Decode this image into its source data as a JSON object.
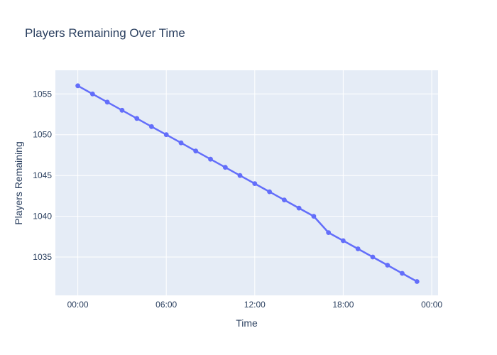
{
  "chart_data": {
    "type": "line",
    "mode": "lines+markers",
    "title": "Players Remaining Over Time",
    "xlabel": "Time",
    "ylabel": "Players Remaining",
    "x": [
      "00:00",
      "01:00",
      "02:00",
      "03:00",
      "04:00",
      "05:00",
      "06:00",
      "07:00",
      "08:00",
      "09:00",
      "10:00",
      "11:00",
      "12:00",
      "13:00",
      "14:00",
      "15:00",
      "16:00",
      "17:00",
      "18:00",
      "19:00",
      "20:00",
      "21:00",
      "22:00",
      "23:00"
    ],
    "x_hours": [
      0,
      1,
      2,
      3,
      4,
      5,
      6,
      7,
      8,
      9,
      10,
      11,
      12,
      13,
      14,
      15,
      16,
      17,
      18,
      19,
      20,
      21,
      22,
      23
    ],
    "series": [
      {
        "name": "Players Remaining",
        "values": [
          1056,
          1055,
          1054,
          1053,
          1052,
          1051,
          1050,
          1049,
          1048,
          1047,
          1046,
          1045,
          1044,
          1043,
          1042,
          1041,
          1040,
          1038,
          1037,
          1036,
          1035,
          1034,
          1033,
          1032
        ]
      }
    ],
    "x_ticks": {
      "hours": [
        0,
        6,
        12,
        18,
        24
      ],
      "labels": [
        "00:00",
        "06:00",
        "12:00",
        "18:00",
        "00:00"
      ]
    },
    "y_ticks": [
      1035,
      1040,
      1045,
      1050,
      1055
    ],
    "x_range_hours": [
      -1.52,
      24.43
    ],
    "ylim": [
      1030.3,
      1057.9
    ],
    "grid": true,
    "legend_position": "none",
    "colors": {
      "trace": "#636efa",
      "plot_bg": "#e5ecf6",
      "grid": "#ffffff",
      "text": "#2a3f5f",
      "paper_bg": "#ffffff"
    }
  }
}
